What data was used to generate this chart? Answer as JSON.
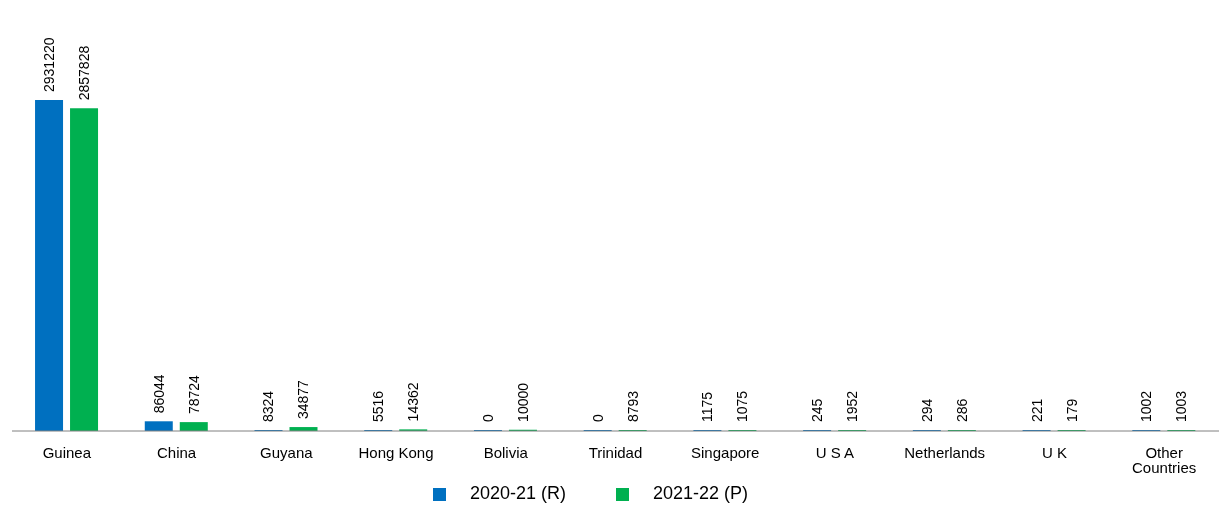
{
  "chart_data": {
    "type": "bar",
    "categories": [
      "Guinea",
      "China",
      "Guyana",
      "Hong Kong",
      "Bolivia",
      "Trinidad",
      "Singapore",
      "U S A",
      "Netherlands",
      "U K",
      "Other Countries"
    ],
    "series": [
      {
        "name": "2020-21 (R)",
        "color": "#0070c0",
        "values": [
          2931220,
          86044,
          8324,
          5516,
          0,
          0,
          1175,
          245,
          294,
          221,
          1002
        ]
      },
      {
        "name": "2021-22 (P)",
        "color": "#00b050",
        "values": [
          2857828,
          78724,
          34877,
          14362,
          10000,
          8793,
          1075,
          1952,
          286,
          179,
          1003
        ]
      }
    ],
    "data_labels": true,
    "legend": "bottom",
    "grid": false
  }
}
